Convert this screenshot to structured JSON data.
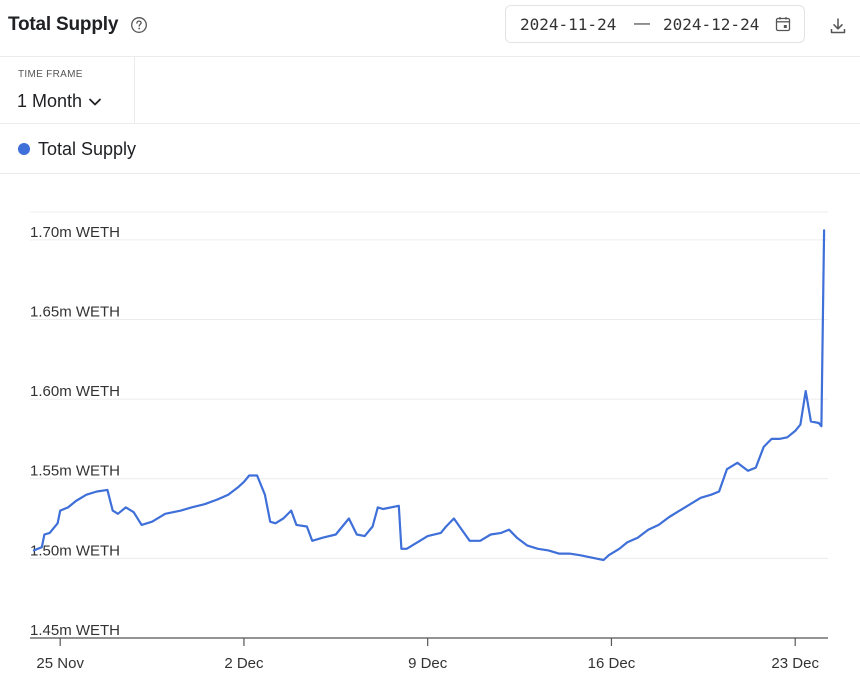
{
  "header": {
    "title": "Total Supply",
    "date_start": "2024-11-24",
    "date_separator": "—",
    "date_end": "2024-12-24",
    "help_icon": "help-circle-icon",
    "calendar_icon": "calendar-icon",
    "download_icon": "download-icon"
  },
  "timeframe": {
    "label": "TIME FRAME",
    "value": "1 Month",
    "chevron_icon": "chevron-down-icon"
  },
  "colors": {
    "series": "#3f6fd8",
    "grid": "#ececec",
    "axis": "#555555"
  },
  "chart_data": {
    "type": "line",
    "title": "Total Supply",
    "xlabel": "",
    "ylabel": "",
    "ylim": [
      1.45,
      1.725
    ],
    "xlim": [
      -0.15,
      30.25
    ],
    "y_ticks": [
      {
        "value": 1.45,
        "label": "1.45m WETH"
      },
      {
        "value": 1.5,
        "label": "1.50m WETH"
      },
      {
        "value": 1.55,
        "label": "1.55m WETH"
      },
      {
        "value": 1.6,
        "label": "1.60m WETH"
      },
      {
        "value": 1.65,
        "label": "1.65m WETH"
      },
      {
        "value": 1.7,
        "label": "1.70m WETH"
      }
    ],
    "x_ticks": [
      {
        "value": 1,
        "label": "25 Nov"
      },
      {
        "value": 8,
        "label": "2 Dec"
      },
      {
        "value": 15,
        "label": "9 Dec"
      },
      {
        "value": 22,
        "label": "16 Dec"
      },
      {
        "value": 29,
        "label": "23 Dec"
      }
    ],
    "grid": true,
    "legend": "top-left",
    "series": [
      {
        "name": "Total Supply",
        "color": "#3f6fd8",
        "x": [
          0.0,
          0.3,
          0.4,
          0.6,
          0.9,
          1.0,
          1.3,
          1.6,
          2.0,
          2.4,
          2.8,
          3.0,
          3.2,
          3.5,
          3.8,
          4.1,
          4.5,
          5.0,
          5.6,
          6.0,
          6.5,
          7.0,
          7.4,
          7.8,
          8.0,
          8.2,
          8.5,
          8.8,
          9.0,
          9.2,
          9.5,
          9.8,
          10.0,
          10.4,
          10.6,
          11.0,
          11.5,
          12.0,
          12.3,
          12.6,
          12.9,
          13.1,
          13.3,
          13.9,
          14.0,
          14.2,
          14.6,
          15.0,
          15.5,
          15.7,
          16.0,
          16.3,
          16.6,
          17.0,
          17.4,
          17.8,
          18.1,
          18.4,
          18.8,
          19.2,
          19.6,
          20.0,
          20.4,
          20.8,
          21.1,
          21.4,
          21.7,
          21.9,
          22.3,
          22.6,
          23.0,
          23.4,
          23.8,
          24.2,
          24.6,
          25.0,
          25.4,
          25.8,
          26.1,
          26.4,
          26.8,
          27.2,
          27.5,
          27.8,
          28.1,
          28.4,
          28.7,
          29.0,
          29.2,
          29.4,
          29.6,
          29.9,
          30.0,
          30.1
        ],
        "values": [
          1.505,
          1.507,
          1.515,
          1.516,
          1.522,
          1.53,
          1.532,
          1.536,
          1.54,
          1.542,
          1.543,
          1.53,
          1.528,
          1.532,
          1.529,
          1.521,
          1.523,
          1.528,
          1.53,
          1.532,
          1.534,
          1.537,
          1.54,
          1.545,
          1.548,
          1.552,
          1.552,
          1.54,
          1.523,
          1.522,
          1.525,
          1.53,
          1.521,
          1.52,
          1.511,
          1.513,
          1.515,
          1.525,
          1.515,
          1.514,
          1.52,
          1.532,
          1.531,
          1.533,
          1.506,
          1.506,
          1.51,
          1.514,
          1.516,
          1.52,
          1.525,
          1.518,
          1.511,
          1.511,
          1.515,
          1.516,
          1.518,
          1.513,
          1.508,
          1.506,
          1.505,
          1.503,
          1.503,
          1.502,
          1.501,
          1.5,
          1.499,
          1.502,
          1.506,
          1.51,
          1.513,
          1.518,
          1.521,
          1.526,
          1.53,
          1.534,
          1.538,
          1.54,
          1.542,
          1.556,
          1.56,
          1.555,
          1.557,
          1.57,
          1.575,
          1.575,
          1.576,
          1.58,
          1.584,
          1.605,
          1.586,
          1.585,
          1.583,
          1.706
        ]
      }
    ]
  }
}
